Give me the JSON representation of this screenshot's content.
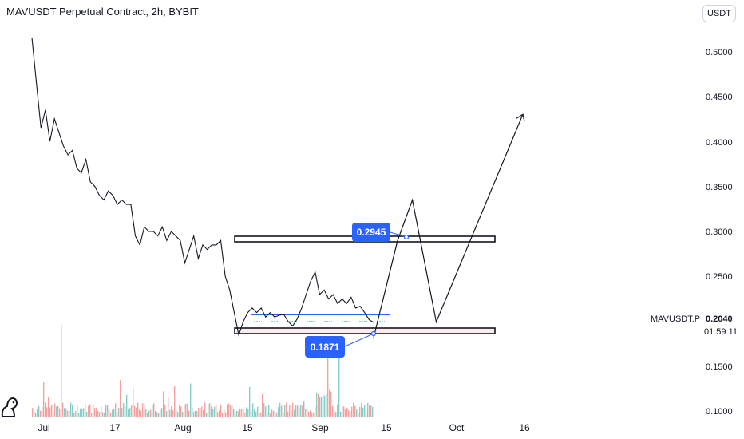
{
  "header": {
    "symbol": "MAVUSDT Perpetual Contract",
    "interval": "2h",
    "exchange": "BYBIT",
    "separator": ", "
  },
  "currency_button": "USDT",
  "price_tag": {
    "symbol": "MAVUSDT.P",
    "price": "0.2040",
    "countdown": "01:59:11"
  },
  "callouts": {
    "upper": "0.2945",
    "lower": "0.1871"
  },
  "colors": {
    "price_line": "#131722",
    "callout": "#2962ff",
    "zone_border": "#131722",
    "volume_up": "#26a69a",
    "volume_down": "#ef5350",
    "range_line": "#2962ff"
  },
  "icons": [
    "tradingview-logo-icon"
  ],
  "chart_data": {
    "type": "line",
    "title": "MAVUSDT Perpetual Contract, 2h, BYBIT",
    "y_axis": {
      "ticks": [
        "0.5000",
        "0.4500",
        "0.4000",
        "0.3500",
        "0.3000",
        "0.2500",
        "0.2040",
        "0.1500",
        "0.1000"
      ],
      "ylim": [
        0.1,
        0.52
      ],
      "position": "right"
    },
    "x_axis": {
      "ticks": [
        "Jul",
        "17",
        "Aug",
        "15",
        "Sep",
        "15",
        "Oct",
        "16"
      ]
    },
    "series": [
      {
        "values": [
          0.52,
          0.47,
          0.42,
          0.44,
          0.405,
          0.43,
          0.415,
          0.4,
          0.39,
          0.395,
          0.375,
          0.37,
          0.385,
          0.36,
          0.355,
          0.345,
          0.34,
          0.35,
          0.345,
          0.335,
          0.34,
          0.335,
          0.335,
          0.3,
          0.29,
          0.31,
          0.305,
          0.305,
          0.3,
          0.31,
          0.295,
          0.305,
          0.3,
          0.295,
          0.27,
          0.285,
          0.3,
          0.275,
          0.29,
          0.285,
          0.29,
          0.29,
          0.295,
          0.255,
          0.24,
          0.215,
          0.19,
          0.205,
          0.215,
          0.22,
          0.215,
          0.22,
          0.21,
          0.215,
          0.21,
          0.212,
          0.213,
          0.205,
          0.2,
          0.208,
          0.22,
          0.235,
          0.25,
          0.26,
          0.235,
          0.24,
          0.23,
          0.235,
          0.225,
          0.23,
          0.225,
          0.232,
          0.22,
          0.222,
          0.215,
          0.207,
          0.204
        ]
      }
    ],
    "zones": [
      {
        "label": "0.2945",
        "low": 0.2905,
        "high": 0.297
      },
      {
        "label": "0.1871",
        "low": 0.1855,
        "high": 0.1905
      }
    ],
    "range_line": 0.2125,
    "projection": [
      {
        "t": 0,
        "v": 0.1871
      },
      {
        "t": 0.16,
        "v": 0.2945
      },
      {
        "t": 0.26,
        "v": 0.34
      },
      {
        "t": 0.42,
        "v": 0.2045
      },
      {
        "t": 1.0,
        "v": 0.435
      }
    ],
    "volume": {
      "up_color": "#26a69a",
      "down_color": "#ef5350"
    },
    "grid": false
  }
}
